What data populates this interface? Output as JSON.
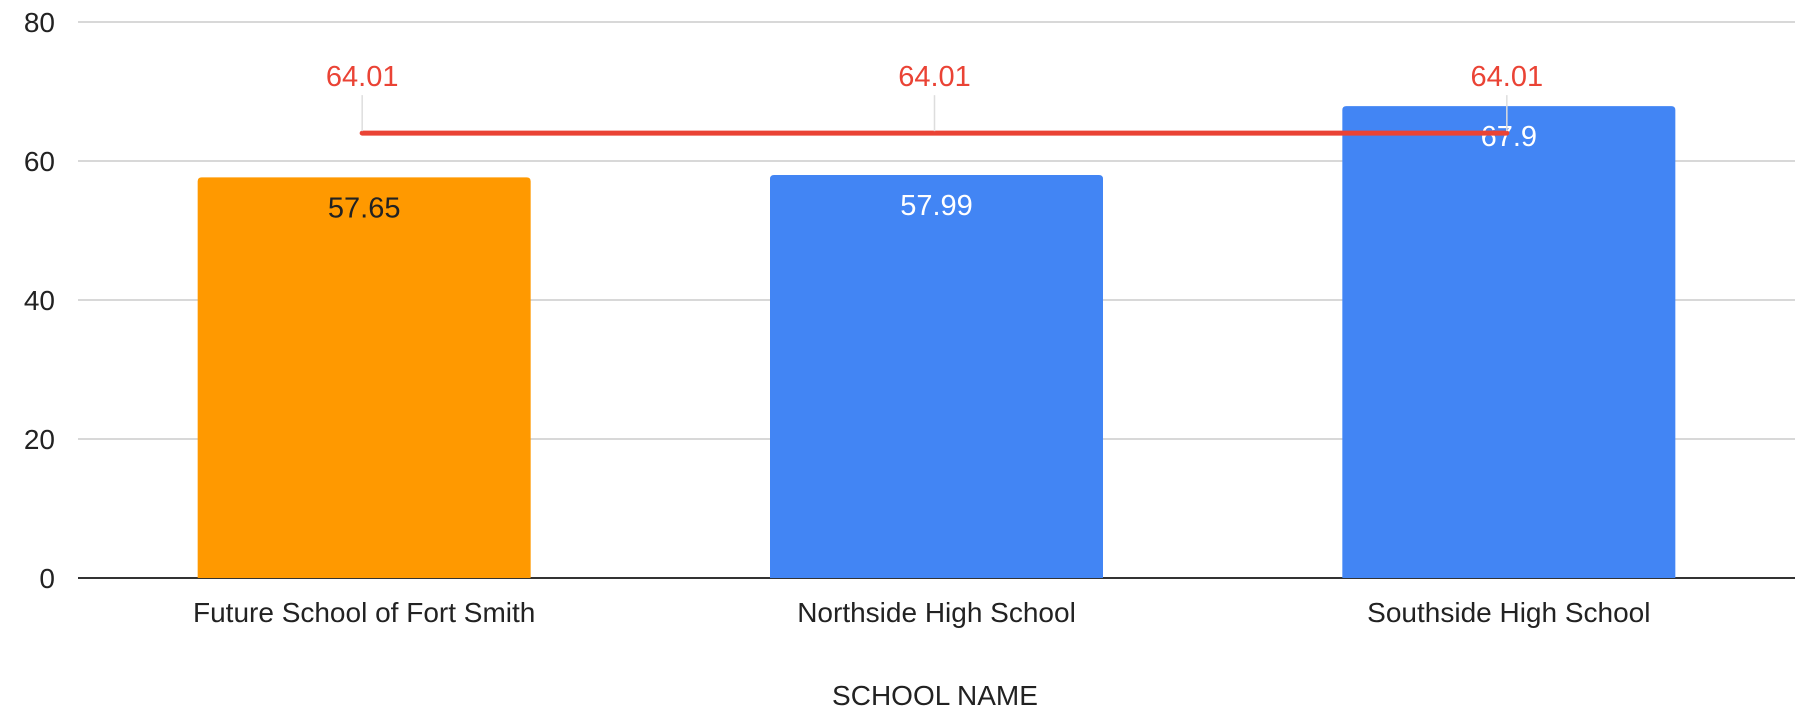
{
  "chart_data": {
    "type": "bar",
    "title": "",
    "xlabel": "SCHOOL NAME",
    "ylabel": "",
    "ylim": [
      0,
      80
    ],
    "yticks": [
      0,
      20,
      40,
      60,
      80
    ],
    "grid": true,
    "categories": [
      "Future School of Fort Smith",
      "Northside High School",
      "Southside High School"
    ],
    "values": [
      57.65,
      57.99,
      67.9
    ],
    "bar_colors": [
      "#ff9900",
      "#4285f4",
      "#4285f4"
    ],
    "data_label_colors": [
      "#222222",
      "#ffffff",
      "#ffffff"
    ],
    "data_labels": [
      "57.65",
      "57.99",
      "67.9"
    ],
    "reference_line": {
      "value": 64.01,
      "labels": [
        "64.01",
        "64.01",
        "64.01"
      ],
      "color": "#ea4335"
    }
  }
}
